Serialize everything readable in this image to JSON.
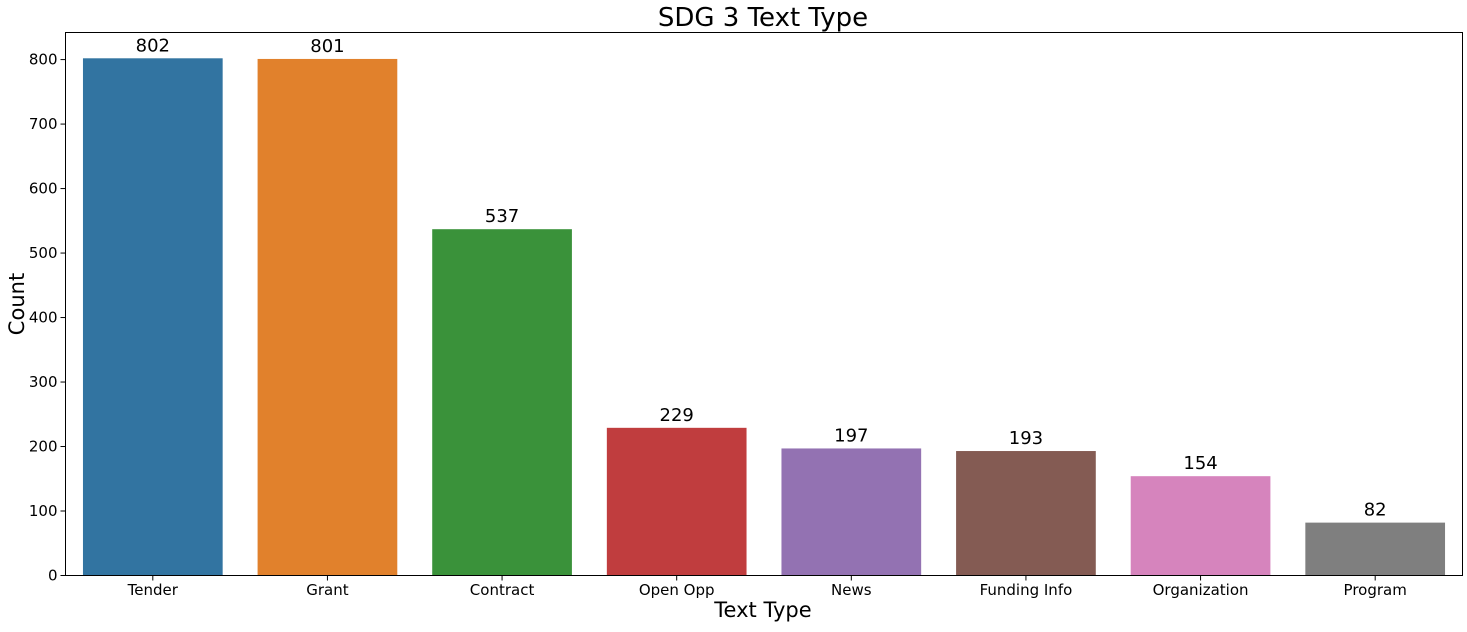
{
  "chart_data": {
    "type": "bar",
    "title": "SDG 3 Text Type",
    "xlabel": "Text Type",
    "ylabel": "Count",
    "categories": [
      "Tender",
      "Grant",
      "Contract",
      "Open Opp",
      "News",
      "Funding Info",
      "Organization",
      "Program"
    ],
    "values": [
      802,
      801,
      537,
      229,
      197,
      193,
      154,
      82
    ],
    "data_labels": [
      "802",
      "801",
      "537",
      "229",
      "197",
      "193",
      "154",
      "82"
    ],
    "colors": [
      "#3274a1",
      "#e1812c",
      "#3a923a",
      "#c03d3e",
      "#9372b2",
      "#845b53",
      "#d684bd",
      "#7f7f7f"
    ],
    "yticks": [
      0,
      100,
      200,
      300,
      400,
      500,
      600,
      700,
      800
    ],
    "ylim": [
      0,
      842
    ],
    "grid": false,
    "legend": "none"
  }
}
